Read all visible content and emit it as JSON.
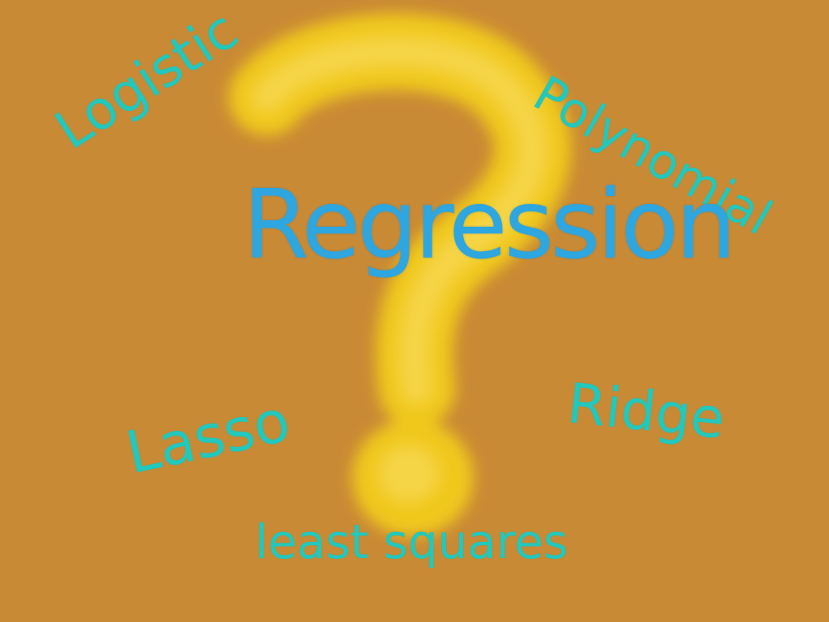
{
  "illustration": {
    "center_word": "Regression",
    "terms": {
      "logistic": "Logistic",
      "polynomial": "Polynomial",
      "lasso": "Lasso",
      "ridge": "Ridge",
      "least_squares": "least squares"
    },
    "symbol": "question-mark"
  },
  "colors": {
    "background": "#c98a35",
    "question_mark": "#f0c81e",
    "center_word": "#2ea6df",
    "terms": "#23c8bd"
  }
}
